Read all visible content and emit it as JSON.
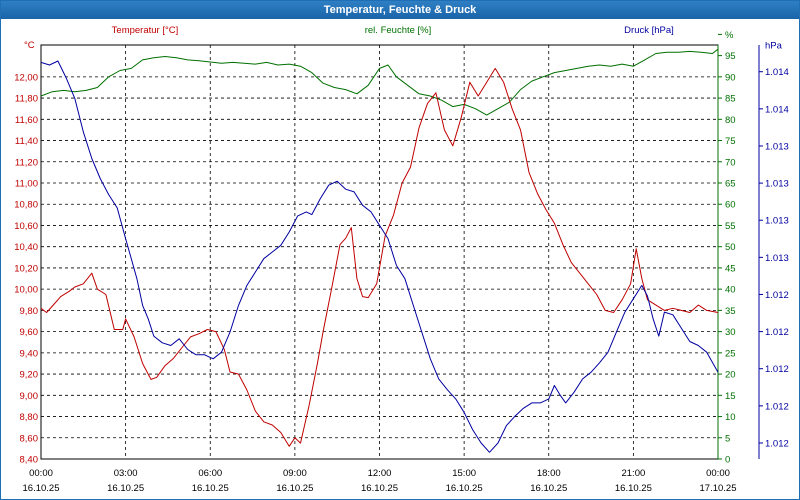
{
  "title": "Temperatur, Feuchte & Druck",
  "chart_data": {
    "type": "line",
    "title": "Temperatur, Feuchte & Druck",
    "x_ticks": [
      {
        "time": "00:00",
        "date": "16.10.25"
      },
      {
        "time": "03:00",
        "date": "16.10.25"
      },
      {
        "time": "06:00",
        "date": "16.10.25"
      },
      {
        "time": "09:00",
        "date": "16.10.25"
      },
      {
        "time": "12:00",
        "date": "16.10.25"
      },
      {
        "time": "15:00",
        "date": "16.10.25"
      },
      {
        "time": "18:00",
        "date": "16.10.25"
      },
      {
        "time": "21:00",
        "date": "16.10.25"
      },
      {
        "time": "00:00",
        "date": "17.10.25"
      }
    ],
    "xlim": [
      0,
      24
    ],
    "temperature": {
      "name": "Temperatur [°C]",
      "unit": "°C",
      "color": "#c00000",
      "ylim": [
        8.4,
        12.3
      ],
      "ticks": [
        "8,40",
        "8,60",
        "8,80",
        "9,00",
        "9,20",
        "9,40",
        "9,60",
        "9,80",
        "10,00",
        "10,20",
        "10,40",
        "10,60",
        "10,80",
        "11,00",
        "11,20",
        "11,40",
        "11,60",
        "11,80",
        "12,00"
      ],
      "points": [
        [
          0,
          9.82
        ],
        [
          0.2,
          9.78
        ],
        [
          0.5,
          9.87
        ],
        [
          0.7,
          9.93
        ],
        [
          1,
          9.98
        ],
        [
          1.2,
          10.02
        ],
        [
          1.5,
          10.05
        ],
        [
          1.8,
          10.15
        ],
        [
          2,
          10.0
        ],
        [
          2.3,
          9.95
        ],
        [
          2.6,
          9.62
        ],
        [
          2.9,
          9.62
        ],
        [
          3,
          9.72
        ],
        [
          3.3,
          9.55
        ],
        [
          3.6,
          9.3
        ],
        [
          3.9,
          9.15
        ],
        [
          4.1,
          9.17
        ],
        [
          4.4,
          9.28
        ],
        [
          4.7,
          9.35
        ],
        [
          5,
          9.45
        ],
        [
          5.3,
          9.55
        ],
        [
          5.6,
          9.58
        ],
        [
          5.9,
          9.62
        ],
        [
          6.2,
          9.6
        ],
        [
          6.5,
          9.43
        ],
        [
          6.7,
          9.22
        ],
        [
          7,
          9.2
        ],
        [
          7.3,
          9.05
        ],
        [
          7.6,
          8.85
        ],
        [
          7.9,
          8.75
        ],
        [
          8.2,
          8.72
        ],
        [
          8.5,
          8.65
        ],
        [
          8.8,
          8.52
        ],
        [
          9,
          8.6
        ],
        [
          9.2,
          8.55
        ],
        [
          9.5,
          8.9
        ],
        [
          9.8,
          9.3
        ],
        [
          10,
          9.6
        ],
        [
          10.3,
          10.0
        ],
        [
          10.6,
          10.42
        ],
        [
          10.8,
          10.48
        ],
        [
          11,
          10.58
        ],
        [
          11.2,
          10.1
        ],
        [
          11.4,
          9.93
        ],
        [
          11.6,
          9.92
        ],
        [
          11.9,
          10.05
        ],
        [
          12.2,
          10.5
        ],
        [
          12.5,
          10.7
        ],
        [
          12.8,
          11.0
        ],
        [
          13.1,
          11.15
        ],
        [
          13.4,
          11.52
        ],
        [
          13.7,
          11.75
        ],
        [
          14,
          11.85
        ],
        [
          14.3,
          11.5
        ],
        [
          14.6,
          11.35
        ],
        [
          14.9,
          11.62
        ],
        [
          15.2,
          11.95
        ],
        [
          15.5,
          11.82
        ],
        [
          15.8,
          11.95
        ],
        [
          16.1,
          12.08
        ],
        [
          16.4,
          11.95
        ],
        [
          16.7,
          11.7
        ],
        [
          17,
          11.5
        ],
        [
          17.3,
          11.1
        ],
        [
          17.6,
          10.9
        ],
        [
          17.9,
          10.75
        ],
        [
          18.2,
          10.62
        ],
        [
          18.5,
          10.42
        ],
        [
          18.8,
          10.25
        ],
        [
          19.1,
          10.15
        ],
        [
          19.4,
          10.05
        ],
        [
          19.7,
          9.95
        ],
        [
          20,
          9.8
        ],
        [
          20.3,
          9.78
        ],
        [
          20.6,
          9.9
        ],
        [
          20.9,
          10.05
        ],
        [
          21.1,
          10.38
        ],
        [
          21.3,
          10.1
        ],
        [
          21.5,
          9.9
        ],
        [
          21.8,
          9.85
        ],
        [
          22.1,
          9.8
        ],
        [
          22.4,
          9.82
        ],
        [
          22.7,
          9.8
        ],
        [
          23,
          9.78
        ],
        [
          23.3,
          9.85
        ],
        [
          23.6,
          9.8
        ],
        [
          24,
          9.78
        ]
      ]
    },
    "humidity": {
      "name": "rel. Feuchte [%]",
      "unit": "%",
      "color": "#007000",
      "ylim": [
        0,
        97.5
      ],
      "ticks": [
        "0",
        "5",
        "10",
        "15",
        "20",
        "25",
        "30",
        "35",
        "40",
        "45",
        "50",
        "55",
        "60",
        "65",
        "70",
        "75",
        "80",
        "85",
        "90",
        "95",
        "%"
      ],
      "points": [
        [
          0,
          85.5
        ],
        [
          0.4,
          86.5
        ],
        [
          0.8,
          86.8
        ],
        [
          1.2,
          86.5
        ],
        [
          1.6,
          86.8
        ],
        [
          2,
          87.5
        ],
        [
          2.4,
          90
        ],
        [
          2.8,
          91.5
        ],
        [
          3.2,
          92
        ],
        [
          3.6,
          94
        ],
        [
          4,
          94.5
        ],
        [
          4.4,
          94.8
        ],
        [
          4.8,
          94.5
        ],
        [
          5.2,
          94
        ],
        [
          5.6,
          93.8
        ],
        [
          6,
          93.5
        ],
        [
          6.4,
          93.2
        ],
        [
          6.8,
          93.4
        ],
        [
          7.2,
          93.2
        ],
        [
          7.6,
          93
        ],
        [
          8,
          93.4
        ],
        [
          8.4,
          92.8
        ],
        [
          8.8,
          93
        ],
        [
          9.2,
          92.5
        ],
        [
          9.6,
          91
        ],
        [
          10,
          88.5
        ],
        [
          10.4,
          87.5
        ],
        [
          10.8,
          87
        ],
        [
          11.2,
          86
        ],
        [
          11.6,
          88
        ],
        [
          12,
          92
        ],
        [
          12.3,
          92.8
        ],
        [
          12.6,
          90
        ],
        [
          13,
          88
        ],
        [
          13.4,
          86
        ],
        [
          13.8,
          85.5
        ],
        [
          14.2,
          84.5
        ],
        [
          14.6,
          83
        ],
        [
          15,
          83.5
        ],
        [
          15.4,
          82.5
        ],
        [
          15.8,
          81
        ],
        [
          16.2,
          82.5
        ],
        [
          16.6,
          84
        ],
        [
          17,
          87
        ],
        [
          17.4,
          89
        ],
        [
          17.8,
          90
        ],
        [
          18.2,
          91
        ],
        [
          18.6,
          91.5
        ],
        [
          19,
          92
        ],
        [
          19.4,
          92.5
        ],
        [
          19.8,
          92.8
        ],
        [
          20.2,
          92.5
        ],
        [
          20.6,
          93
        ],
        [
          21,
          92.5
        ],
        [
          21.4,
          94
        ],
        [
          21.8,
          95.5
        ],
        [
          22.2,
          95.8
        ],
        [
          22.6,
          95.8
        ],
        [
          23,
          96
        ],
        [
          23.4,
          95.8
        ],
        [
          23.8,
          95.5
        ],
        [
          24,
          96.5
        ]
      ]
    },
    "pressure": {
      "name": "Druck [hPa]",
      "unit": "hPa",
      "color": "#0000a0",
      "ylim": [
        1011.5,
        1014.6
      ],
      "ticks": [
        "1.012",
        "1.012",
        "1.012",
        "1.012",
        "1.012",
        "1.013",
        "1.013",
        "1.013",
        "1.013",
        "1.014",
        "1.014",
        "hPa"
      ],
      "points": [
        [
          0,
          1014.47
        ],
        [
          0.3,
          1014.45
        ],
        [
          0.6,
          1014.48
        ],
        [
          0.9,
          1014.35
        ],
        [
          1.2,
          1014.2
        ],
        [
          1.5,
          1013.95
        ],
        [
          1.8,
          1013.75
        ],
        [
          2.1,
          1013.6
        ],
        [
          2.4,
          1013.48
        ],
        [
          2.7,
          1013.38
        ],
        [
          3,
          1013.15
        ],
        [
          3.2,
          1013.0
        ],
        [
          3.4,
          1012.85
        ],
        [
          3.6,
          1012.65
        ],
        [
          3.8,
          1012.55
        ],
        [
          4,
          1012.42
        ],
        [
          4.3,
          1012.37
        ],
        [
          4.6,
          1012.35
        ],
        [
          4.9,
          1012.4
        ],
        [
          5.2,
          1012.32
        ],
        [
          5.5,
          1012.28
        ],
        [
          5.8,
          1012.28
        ],
        [
          6.1,
          1012.25
        ],
        [
          6.4,
          1012.3
        ],
        [
          6.7,
          1012.45
        ],
        [
          7,
          1012.65
        ],
        [
          7.3,
          1012.8
        ],
        [
          7.6,
          1012.9
        ],
        [
          7.9,
          1013.0
        ],
        [
          8.2,
          1013.05
        ],
        [
          8.5,
          1013.1
        ],
        [
          8.8,
          1013.2
        ],
        [
          9.1,
          1013.32
        ],
        [
          9.4,
          1013.35
        ],
        [
          9.6,
          1013.33
        ],
        [
          9.9,
          1013.45
        ],
        [
          10.2,
          1013.55
        ],
        [
          10.5,
          1013.58
        ],
        [
          10.8,
          1013.52
        ],
        [
          11.1,
          1013.5
        ],
        [
          11.4,
          1013.4
        ],
        [
          11.7,
          1013.35
        ],
        [
          12,
          1013.25
        ],
        [
          12.3,
          1013.15
        ],
        [
          12.6,
          1012.95
        ],
        [
          12.9,
          1012.85
        ],
        [
          13.2,
          1012.65
        ],
        [
          13.5,
          1012.45
        ],
        [
          13.8,
          1012.25
        ],
        [
          14.1,
          1012.1
        ],
        [
          14.4,
          1012.02
        ],
        [
          14.7,
          1011.95
        ],
        [
          15,
          1011.85
        ],
        [
          15.3,
          1011.72
        ],
        [
          15.6,
          1011.62
        ],
        [
          15.9,
          1011.55
        ],
        [
          16.2,
          1011.62
        ],
        [
          16.5,
          1011.75
        ],
        [
          16.8,
          1011.82
        ],
        [
          17.1,
          1011.88
        ],
        [
          17.4,
          1011.92
        ],
        [
          17.7,
          1011.92
        ],
        [
          18,
          1011.95
        ],
        [
          18.2,
          1012.05
        ],
        [
          18.4,
          1011.98
        ],
        [
          18.6,
          1011.92
        ],
        [
          18.9,
          1012.0
        ],
        [
          19.2,
          1012.1
        ],
        [
          19.5,
          1012.15
        ],
        [
          19.8,
          1012.22
        ],
        [
          20.1,
          1012.3
        ],
        [
          20.4,
          1012.45
        ],
        [
          20.7,
          1012.6
        ],
        [
          21,
          1012.7
        ],
        [
          21.3,
          1012.8
        ],
        [
          21.5,
          1012.72
        ],
        [
          21.7,
          1012.55
        ],
        [
          21.9,
          1012.42
        ],
        [
          22.1,
          1012.6
        ],
        [
          22.4,
          1012.58
        ],
        [
          22.7,
          1012.48
        ],
        [
          23,
          1012.38
        ],
        [
          23.3,
          1012.35
        ],
        [
          23.6,
          1012.3
        ],
        [
          24,
          1012.15
        ]
      ]
    }
  }
}
